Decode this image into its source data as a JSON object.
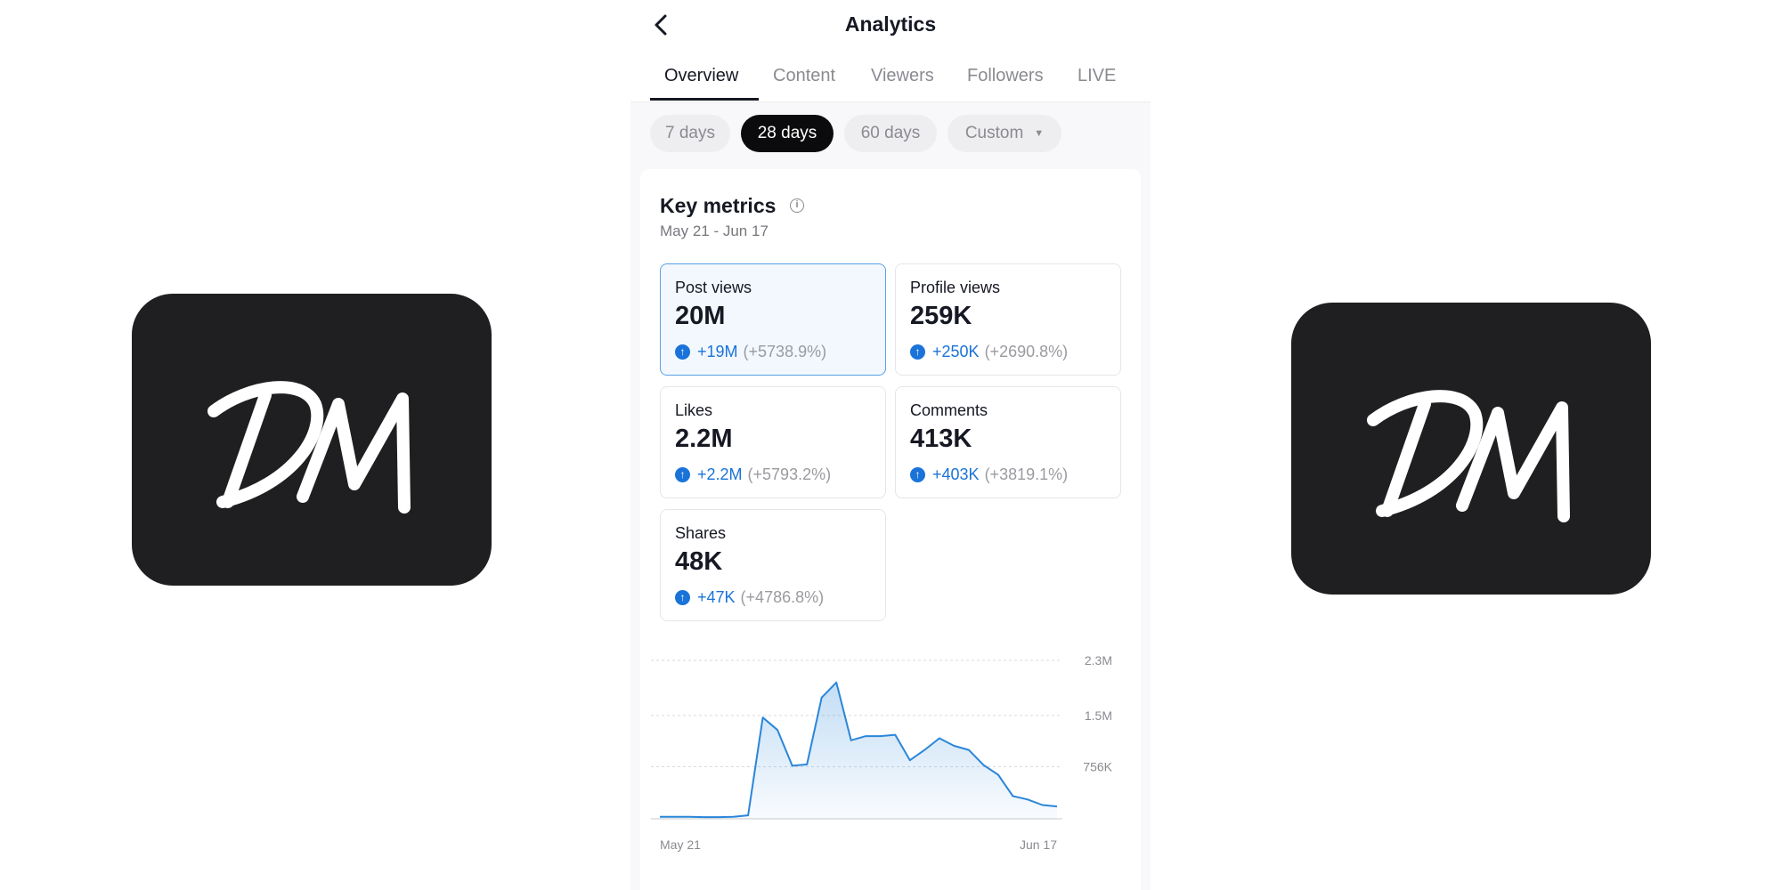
{
  "logos": {
    "text": "DM"
  },
  "header": {
    "title": "Analytics",
    "back_icon": "chevron-left-icon"
  },
  "tabs": [
    {
      "label": "Overview",
      "active": true
    },
    {
      "label": "Content"
    },
    {
      "label": "Viewers"
    },
    {
      "label": "Followers"
    },
    {
      "label": "LIVE"
    }
  ],
  "filters": [
    {
      "label": "7 days"
    },
    {
      "label": "28 days",
      "active": true
    },
    {
      "label": "60 days"
    },
    {
      "label": "Custom",
      "icon": "caret-down-icon"
    }
  ],
  "key_metrics": {
    "title": "Key metrics",
    "date_range": "May 21 - Jun 17",
    "accent_color": "#1a73d8",
    "items": [
      {
        "label": "Post views",
        "value": "20M",
        "change": "+19M",
        "percent": "(+5738.9%)",
        "selected": true
      },
      {
        "label": "Profile views",
        "value": "259K",
        "change": "+250K",
        "percent": "(+2690.8%)"
      },
      {
        "label": "Likes",
        "value": "2.2M",
        "change": "+2.2M",
        "percent": "(+5793.2%)"
      },
      {
        "label": "Comments",
        "value": "413K",
        "change": "+403K",
        "percent": "(+3819.1%)"
      },
      {
        "label": "Shares",
        "value": "48K",
        "change": "+47K",
        "percent": "(+4786.8%)"
      }
    ]
  },
  "chart_data": {
    "type": "area",
    "x_labels": [
      "May 21",
      "Jun 17"
    ],
    "y_ticks": [
      {
        "value": 2300000,
        "label": "2.3M"
      },
      {
        "value": 1500000,
        "label": "1.5M"
      },
      {
        "value": 756000,
        "label": "756K"
      }
    ],
    "ylim": [
      0,
      2300000
    ],
    "grid": true,
    "line_color": "#2a86d9",
    "values": [
      30000,
      30000,
      30000,
      25000,
      25000,
      30000,
      50000,
      1470000,
      1290000,
      770000,
      790000,
      1760000,
      1980000,
      1140000,
      1200000,
      1200000,
      1220000,
      850000,
      1000000,
      1170000,
      1060000,
      1000000,
      780000,
      640000,
      330000,
      280000,
      200000,
      180000
    ]
  }
}
